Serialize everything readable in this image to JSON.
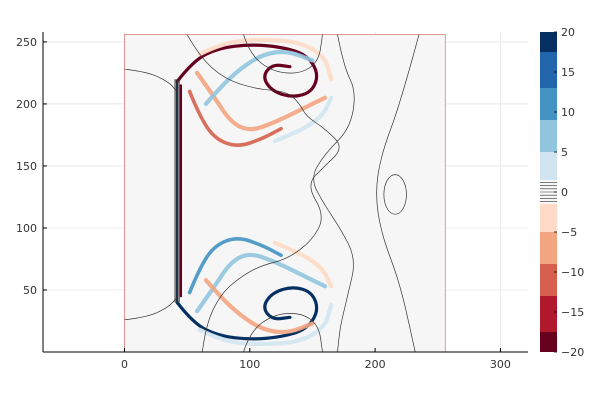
{
  "chart_data": {
    "type": "heatmap",
    "title": "",
    "xlabel": "",
    "ylabel": "",
    "xlim": [
      -65,
      322
    ],
    "ylim": [
      0,
      258
    ],
    "x_ticks": [
      {
        "value": 0,
        "label": "0"
      },
      {
        "value": 100,
        "label": "100"
      },
      {
        "value": 200,
        "label": "200"
      },
      {
        "value": 300,
        "label": "300"
      }
    ],
    "y_ticks": [
      {
        "value": 50,
        "label": "50"
      },
      {
        "value": 100,
        "label": "100"
      },
      {
        "value": 150,
        "label": "150"
      },
      {
        "value": 200,
        "label": "200"
      },
      {
        "value": 250,
        "label": "250"
      }
    ],
    "field_extent": {
      "x": [
        0,
        256
      ],
      "y": [
        0,
        256
      ]
    },
    "background_value": 0,
    "grid": true,
    "colorbar": {
      "position": "right",
      "range": [
        -20,
        20
      ],
      "bins": [
        {
          "from": -20,
          "to": -17.5,
          "color": "#67001f"
        },
        {
          "from": -17.5,
          "to": -13,
          "color": "#b2182b"
        },
        {
          "from": -13,
          "to": -9,
          "color": "#d6604d"
        },
        {
          "from": -9,
          "to": -5,
          "color": "#f4a582"
        },
        {
          "from": -5,
          "to": -1.5,
          "color": "#fddbc7"
        },
        {
          "from": -1.5,
          "to": 1.5,
          "color": "#f7f7f7"
        },
        {
          "from": 1.5,
          "to": 5,
          "color": "#d1e5f0"
        },
        {
          "from": 5,
          "to": 9,
          "color": "#92c5de"
        },
        {
          "from": 9,
          "to": 13,
          "color": "#4393c3"
        },
        {
          "from": 13,
          "to": 17.5,
          "color": "#2166ac"
        },
        {
          "from": 17.5,
          "to": 20,
          "color": "#053061"
        }
      ],
      "ticks": [
        {
          "value": -20,
          "label": "−20"
        },
        {
          "value": -15,
          "label": "−15"
        },
        {
          "value": -10,
          "label": "−10"
        },
        {
          "value": -5,
          "label": "−5"
        },
        {
          "value": 0,
          "label": "0"
        },
        {
          "value": 5,
          "label": "5"
        },
        {
          "value": 10,
          "label": "10"
        },
        {
          "value": 15,
          "label": "15"
        },
        {
          "value": 20,
          "label": "20"
        }
      ]
    },
    "features": [
      {
        "name": "wall",
        "value": 20,
        "points": [
          [
            42,
            40
          ],
          [
            42,
            218
          ]
        ]
      },
      {
        "name": "wall",
        "value": -20,
        "points": [
          [
            45,
            45
          ],
          [
            45,
            215
          ]
        ]
      },
      {
        "name": "upper-vortex",
        "value": -20,
        "points": [
          [
            42,
            218
          ],
          [
            55,
            235
          ],
          [
            75,
            245
          ],
          [
            100,
            248
          ],
          [
            125,
            246
          ],
          [
            145,
            240
          ],
          [
            155,
            225
          ],
          [
            150,
            210
          ],
          [
            135,
            205
          ],
          [
            118,
            210
          ],
          [
            110,
            222
          ],
          [
            118,
            232
          ],
          [
            132,
            230
          ]
        ]
      },
      {
        "name": "upper-vortex",
        "value": -12,
        "points": [
          [
            52,
            210
          ],
          [
            60,
            190
          ],
          [
            72,
            172
          ],
          [
            90,
            165
          ],
          [
            110,
            172
          ],
          [
            125,
            180
          ]
        ]
      },
      {
        "name": "upper-vortex",
        "value": -7,
        "points": [
          [
            58,
            225
          ],
          [
            72,
            205
          ],
          [
            85,
            185
          ],
          [
            100,
            178
          ],
          [
            120,
            185
          ],
          [
            140,
            195
          ],
          [
            160,
            205
          ]
        ]
      },
      {
        "name": "upper-vortex",
        "value": -3,
        "points": [
          [
            60,
            240
          ],
          [
            80,
            250
          ],
          [
            110,
            252
          ],
          [
            140,
            250
          ],
          [
            160,
            238
          ],
          [
            165,
            220
          ]
        ]
      },
      {
        "name": "upper-vortex",
        "value": 7,
        "points": [
          [
            65,
            200
          ],
          [
            78,
            215
          ],
          [
            92,
            228
          ],
          [
            110,
            240
          ],
          [
            130,
            243
          ],
          [
            150,
            235
          ]
        ]
      },
      {
        "name": "upper-vortex",
        "value": 3,
        "points": [
          [
            120,
            170
          ],
          [
            140,
            178
          ],
          [
            158,
            190
          ],
          [
            165,
            205
          ]
        ]
      },
      {
        "name": "lower-vortex",
        "value": 20,
        "points": [
          [
            42,
            40
          ],
          [
            55,
            23
          ],
          [
            75,
            13
          ],
          [
            100,
            10
          ],
          [
            125,
            12
          ],
          [
            145,
            18
          ],
          [
            155,
            33
          ],
          [
            150,
            48
          ],
          [
            135,
            53
          ],
          [
            118,
            48
          ],
          [
            110,
            36
          ],
          [
            118,
            26
          ],
          [
            132,
            28
          ]
        ]
      },
      {
        "name": "lower-vortex",
        "value": 12,
        "points": [
          [
            52,
            48
          ],
          [
            60,
            68
          ],
          [
            72,
            86
          ],
          [
            90,
            93
          ],
          [
            110,
            86
          ],
          [
            125,
            78
          ]
        ]
      },
      {
        "name": "lower-vortex",
        "value": 7,
        "points": [
          [
            58,
            33
          ],
          [
            72,
            53
          ],
          [
            85,
            73
          ],
          [
            100,
            80
          ],
          [
            120,
            73
          ],
          [
            140,
            63
          ],
          [
            160,
            53
          ]
        ]
      },
      {
        "name": "lower-vortex",
        "value": 3,
        "points": [
          [
            60,
            18
          ],
          [
            80,
            8
          ],
          [
            110,
            6
          ],
          [
            140,
            8
          ],
          [
            160,
            20
          ],
          [
            165,
            38
          ]
        ]
      },
      {
        "name": "lower-vortex",
        "value": -7,
        "points": [
          [
            65,
            58
          ],
          [
            78,
            43
          ],
          [
            92,
            30
          ],
          [
            110,
            18
          ],
          [
            130,
            15
          ],
          [
            150,
            23
          ]
        ]
      },
      {
        "name": "lower-vortex",
        "value": -3,
        "points": [
          [
            120,
            88
          ],
          [
            140,
            80
          ],
          [
            158,
            68
          ],
          [
            165,
            53
          ]
        ]
      }
    ],
    "contours": [
      [
        [
          0,
          228
        ],
        [
          18,
          226
        ],
        [
          35,
          218
        ],
        [
          42,
          210
        ]
      ],
      [
        [
          0,
          26
        ],
        [
          18,
          28
        ],
        [
          35,
          36
        ],
        [
          42,
          44
        ]
      ],
      [
        [
          50,
          256
        ],
        [
          60,
          238
        ],
        [
          80,
          220
        ],
        [
          105,
          212
        ],
        [
          130,
          210
        ],
        [
          140,
          200
        ],
        [
          145,
          190
        ],
        [
          160,
          180
        ],
        [
          175,
          165
        ],
        [
          160,
          150
        ],
        [
          145,
          135
        ],
        [
          160,
          110
        ],
        [
          150,
          90
        ],
        [
          130,
          75
        ],
        [
          110,
          70
        ],
        [
          95,
          62
        ],
        [
          80,
          50
        ],
        [
          70,
          34
        ],
        [
          65,
          18
        ],
        [
          62,
          0
        ]
      ],
      [
        [
          95,
          256
        ],
        [
          100,
          240
        ],
        [
          118,
          226
        ],
        [
          140,
          224
        ],
        [
          155,
          234
        ],
        [
          158,
          256
        ]
      ],
      [
        [
          95,
          0
        ],
        [
          100,
          16
        ],
        [
          118,
          30
        ],
        [
          140,
          32
        ],
        [
          155,
          22
        ],
        [
          158,
          0
        ]
      ],
      [
        [
          170,
          256
        ],
        [
          175,
          230
        ],
        [
          185,
          210
        ],
        [
          180,
          180
        ],
        [
          160,
          160
        ],
        [
          148,
          140
        ],
        [
          160,
          118
        ],
        [
          172,
          100
        ],
        [
          185,
          75
        ],
        [
          178,
          45
        ],
        [
          172,
          20
        ],
        [
          170,
          0
        ]
      ],
      [
        [
          235,
          256
        ],
        [
          220,
          200
        ],
        [
          205,
          160
        ],
        [
          200,
          128
        ],
        [
          205,
          95
        ],
        [
          220,
          55
        ],
        [
          232,
          0
        ]
      ]
    ],
    "closed_contours": [
      {
        "cx": 216,
        "cy": 127,
        "rx": 9,
        "ry": 16
      }
    ],
    "line_bundles": [
      {
        "x": 42,
        "y": [
          40,
          220
        ],
        "count": 5
      }
    ]
  }
}
